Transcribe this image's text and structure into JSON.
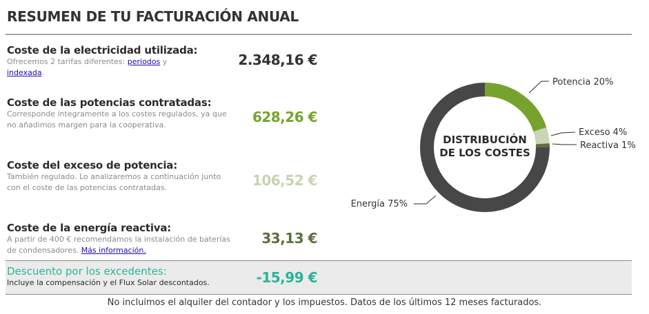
{
  "title": "RESUMEN DE TU FACTURACIÓN ANUAL",
  "rows": [
    {
      "title": "Coste de la electricidad utilizada:",
      "desc_prefix": "Ofrecemos 2 tarifas diferentes: ",
      "link1": "periodos",
      "desc_mid": " y",
      "link2": "indexada",
      "desc_suffix": ".",
      "amount": "2.348,16 €",
      "amount_color": "#333333"
    },
    {
      "title": "Coste de las potencias contratadas:",
      "desc": "Corresponde íntegramente a los costes regulados, ya que no añadimos margen para la cooperativa.",
      "amount": "628,26 €",
      "amount_color": "#76a32e"
    },
    {
      "title": "Coste del exceso de potencia:",
      "desc": "También regulado. Lo analizaremos a continuación junto con el coste de las potencias contratadas.",
      "amount": "106,52 €",
      "amount_color": "#c7d3b2"
    },
    {
      "title": "Coste de la energía reactiva:",
      "desc_prefix": "A partir de 400 € recomendamos la instalación de baterías de condensadores. ",
      "link": "Más información.",
      "amount": "33,13 €",
      "amount_color": "#5d6e3f"
    }
  ],
  "discount": {
    "title": "Descuento por los excedentes:",
    "desc": "Incluye la compensación y el Flux Solar descontados.",
    "amount": "-15,99 €",
    "color": "#2bb39a"
  },
  "footer": "No incluimos el alquiler del contador y los impuestos. Datos de los últimos 12 meses facturados.",
  "donut": {
    "center_line1": "DISTRIBUCIÓN",
    "center_line2": "DE LOS COSTES",
    "segments": [
      {
        "label": "Potencia 20%",
        "value": 20,
        "color": "#76a32e"
      },
      {
        "label": "Exceso 4%",
        "value": 4,
        "color": "#c9d5b5"
      },
      {
        "label": "Reactiva 1%",
        "value": 1,
        "color": "#5d6e3f"
      },
      {
        "label": "Energía 75%",
        "value": 75,
        "color": "#474747"
      }
    ]
  }
}
